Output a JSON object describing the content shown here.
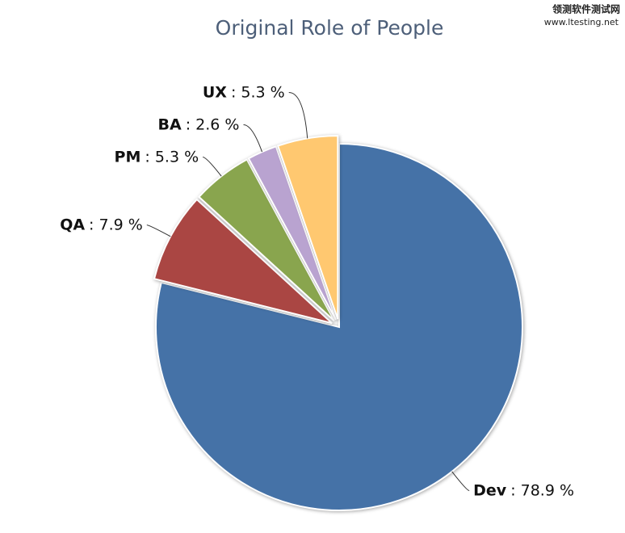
{
  "chart_data": {
    "type": "pie",
    "title": "Original Role of People",
    "categories": [
      "Dev",
      "QA",
      "PM",
      "BA",
      "UX"
    ],
    "values": [
      78.9,
      7.9,
      5.3,
      2.6,
      5.3
    ],
    "value_labels": [
      ": 78.9 %",
      ": 7.9 %",
      ": 5.3 %",
      ": 2.6 %",
      ": 5.3 %"
    ],
    "colors": [
      "#4572a7",
      "#aa4643",
      "#89a54e",
      "#b9a3d0",
      "#ffc870"
    ],
    "sliced": [
      false,
      true,
      true,
      true,
      true
    ]
  },
  "watermark": {
    "name": "领测软件测试网",
    "url": "www.ltesting.net"
  }
}
